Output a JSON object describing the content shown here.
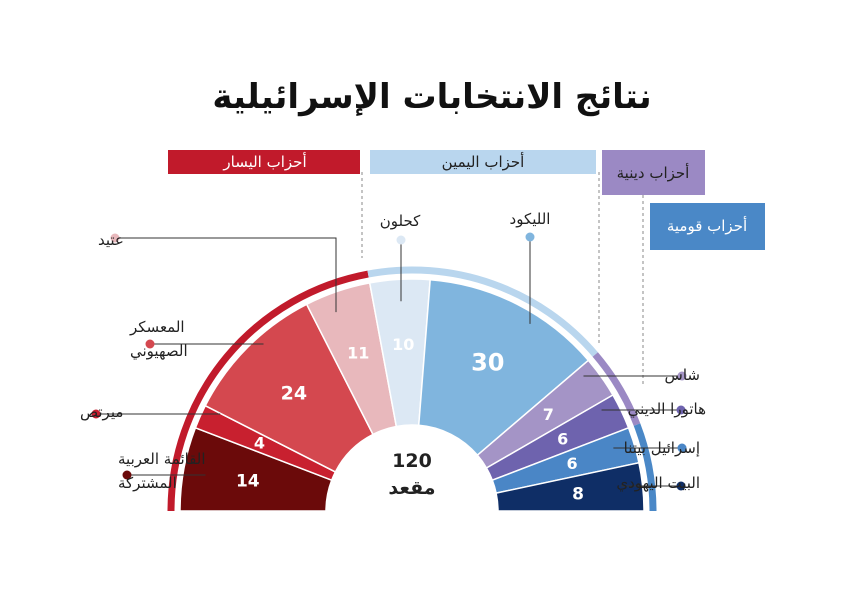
{
  "chart_data": {
    "type": "semicircle-parliament",
    "title": "نتائج الانتخابات الإسرائيلية",
    "total": {
      "value": "120",
      "unit": "مقعد"
    },
    "blocs": [
      {
        "name": "أحزاب اليسار",
        "color": "#c11a2b",
        "text_color": "#ffffff"
      },
      {
        "name": "أحزاب اليمين",
        "color": "#b9d6ee",
        "text_color": "#222222"
      },
      {
        "name": "أحزاب دينية",
        "color": "#9b89c4",
        "text_color": "#222222"
      },
      {
        "name": "أحزاب قومية",
        "color": "#4a88c7",
        "text_color": "#ffffff"
      }
    ],
    "parties": [
      {
        "name": "القائمة العربية المشتركة",
        "lines": [
          "القائمة العربية",
          "المشتركة"
        ],
        "seats": 14,
        "color": "#6b0a0a",
        "bloc": "أحزاب اليسار"
      },
      {
        "name": "ميرتص",
        "lines": [
          "ميرتص"
        ],
        "seats": 4,
        "color": "#c8202f",
        "bloc": "أحزاب اليسار"
      },
      {
        "name": "المعسكر الصهيوني",
        "lines": [
          "المعسكر",
          "الصهيوني"
        ],
        "seats": 24,
        "color": "#d4484f",
        "bloc": "أحزاب اليسار"
      },
      {
        "name": "عتيد",
        "lines": [
          "عتيد"
        ],
        "seats": 11,
        "color": "#e8b8bc",
        "bloc": "أحزاب اليسار"
      },
      {
        "name": "كحلون",
        "lines": [
          "كحلون"
        ],
        "seats": 10,
        "color": "#dce8f4",
        "bloc": "أحزاب اليمين"
      },
      {
        "name": "الليكود",
        "lines": [
          "الليكود"
        ],
        "seats": 30,
        "color": "#80b5de",
        "bloc": "أحزاب اليمين"
      },
      {
        "name": "شاس",
        "lines": [
          "شاس"
        ],
        "seats": 7,
        "color": "#a494c6",
        "bloc": "أحزاب دينية"
      },
      {
        "name": "هاتورا الديني",
        "lines": [
          "هاتورا الديني"
        ],
        "seats": 6,
        "color": "#6e63ae",
        "bloc": "أحزاب دينية"
      },
      {
        "name": "إسرائيل بيتنا",
        "lines": [
          "إسرائيل بيتنا"
        ],
        "seats": 6,
        "color": "#4a86c6",
        "bloc": "أحزاب قومية"
      },
      {
        "name": "البيت اليهودي",
        "lines": [
          "البيت اليهودي"
        ],
        "seats": 8,
        "color": "#0f2e66",
        "bloc": "أحزاب قومية"
      }
    ]
  }
}
